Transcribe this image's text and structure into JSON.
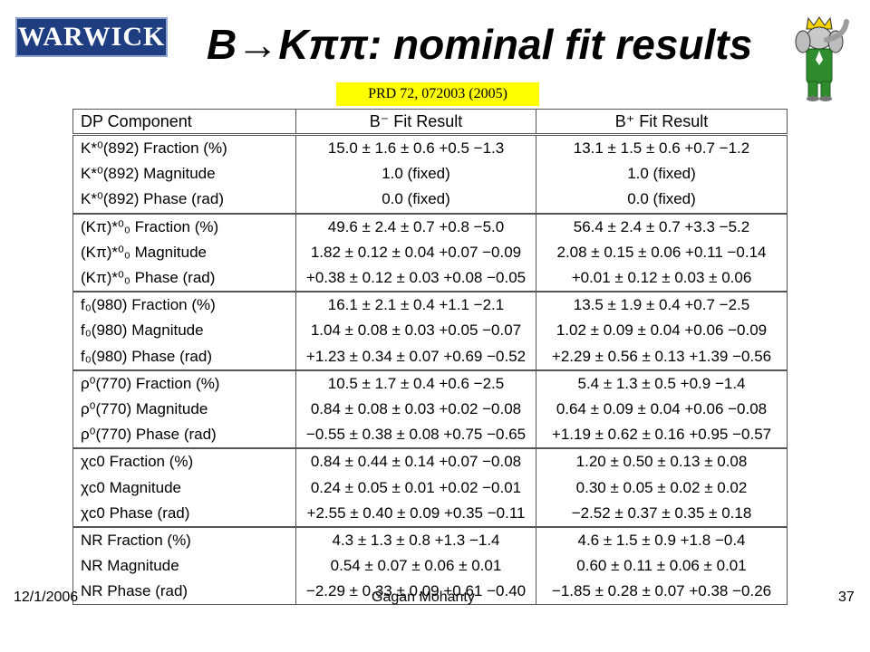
{
  "header": {
    "logo_text": "WARWICK",
    "title": "B→Kππ: nominal fit results",
    "reference": "PRD 72, 072003 (2005)",
    "mascot_icon": "babar-elephant-icon"
  },
  "table": {
    "columns": [
      "DP Component",
      "B⁻ Fit Result",
      "B⁺ Fit Result"
    ],
    "groups": [
      {
        "rows": [
          {
            "component": "K*⁰(892) Fraction (%)",
            "bminus": "15.0 ± 1.6 ± 0.6 +0.5 −1.3",
            "bplus": "13.1 ± 1.5 ± 0.6 +0.7 −1.2"
          },
          {
            "component": "K*⁰(892) Magnitude",
            "bminus": "1.0 (fixed)",
            "bplus": "1.0 (fixed)"
          },
          {
            "component": "K*⁰(892) Phase (rad)",
            "bminus": "0.0 (fixed)",
            "bplus": "0.0 (fixed)"
          }
        ]
      },
      {
        "rows": [
          {
            "component": "(Kπ)*⁰₀ Fraction (%)",
            "bminus": "49.6 ± 2.4 ± 0.7 +0.8 −5.0",
            "bplus": "56.4 ± 2.4 ± 0.7 +3.3 −5.2"
          },
          {
            "component": "(Kπ)*⁰₀ Magnitude",
            "bminus": "1.82 ± 0.12 ± 0.04 +0.07 −0.09",
            "bplus": "2.08 ± 0.15 ± 0.06 +0.11 −0.14"
          },
          {
            "component": "(Kπ)*⁰₀ Phase (rad)",
            "bminus": "+0.38 ± 0.12 ± 0.03 +0.08 −0.05",
            "bplus": "+0.01 ± 0.12 ± 0.03 ± 0.06"
          }
        ]
      },
      {
        "rows": [
          {
            "component": "f₀(980) Fraction (%)",
            "bminus": "16.1 ± 2.1 ± 0.4 +1.1 −2.1",
            "bplus": "13.5 ± 1.9 ± 0.4 +0.7 −2.5"
          },
          {
            "component": "f₀(980) Magnitude",
            "bminus": "1.04 ± 0.08 ± 0.03 +0.05 −0.07",
            "bplus": "1.02 ± 0.09 ± 0.04 +0.06 −0.09"
          },
          {
            "component": "f₀(980) Phase (rad)",
            "bminus": "+1.23 ± 0.34 ± 0.07 +0.69 −0.52",
            "bplus": "+2.29 ± 0.56 ± 0.13 +1.39 −0.56"
          }
        ]
      },
      {
        "rows": [
          {
            "component": "ρ⁰(770) Fraction (%)",
            "bminus": "10.5 ± 1.7 ± 0.4 +0.6 −2.5",
            "bplus": "5.4 ± 1.3 ± 0.5 +0.9 −1.4"
          },
          {
            "component": "ρ⁰(770) Magnitude",
            "bminus": "0.84 ± 0.08 ± 0.03 +0.02 −0.08",
            "bplus": "0.64 ± 0.09 ± 0.04 +0.06 −0.08"
          },
          {
            "component": "ρ⁰(770) Phase (rad)",
            "bminus": "−0.55 ± 0.38 ± 0.08 +0.75 −0.65",
            "bplus": "+1.19 ± 0.62 ± 0.16 +0.95 −0.57"
          }
        ]
      },
      {
        "rows": [
          {
            "component": "χc0 Fraction (%)",
            "bminus": "0.84 ± 0.44 ± 0.14 +0.07 −0.08",
            "bplus": "1.20 ± 0.50 ± 0.13 ± 0.08"
          },
          {
            "component": "χc0 Magnitude",
            "bminus": "0.24 ± 0.05 ± 0.01 +0.02 −0.01",
            "bplus": "0.30 ± 0.05 ± 0.02 ± 0.02"
          },
          {
            "component": "χc0 Phase (rad)",
            "bminus": "+2.55 ± 0.40 ± 0.09 +0.35 −0.11",
            "bplus": "−2.52 ± 0.37 ± 0.35 ± 0.18"
          }
        ]
      },
      {
        "rows": [
          {
            "component": "NR Fraction (%)",
            "bminus": "4.3 ± 1.3 ± 0.8 +1.3 −1.4",
            "bplus": "4.6 ± 1.5 ± 0.9 +1.8 −0.4"
          },
          {
            "component": "NR Magnitude",
            "bminus": "0.54 ± 0.07 ± 0.06 ± 0.01",
            "bplus": "0.60 ± 0.11 ± 0.06 ± 0.01"
          },
          {
            "component": "NR Phase (rad)",
            "bminus": "−2.29 ± 0.33 ± 0.09 +0.61 −0.40",
            "bplus": "−1.85 ± 0.28 ± 0.07 +0.38 −0.26"
          }
        ]
      }
    ]
  },
  "footer": {
    "date": "12/1/2006",
    "author": "Gagan Mohanty",
    "page": "37"
  }
}
